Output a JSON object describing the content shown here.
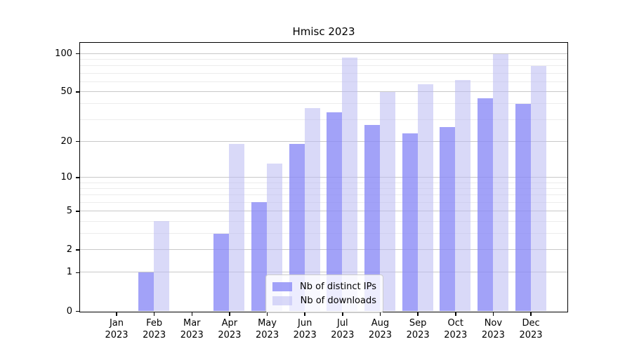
{
  "chart_data": {
    "type": "bar",
    "title": "Hmisc 2023",
    "year": "2023",
    "categories": [
      "Jan",
      "Feb",
      "Mar",
      "Apr",
      "May",
      "Jun",
      "Jul",
      "Aug",
      "Sep",
      "Oct",
      "Nov",
      "Dec"
    ],
    "series": [
      {
        "name": "Nb of distinct IPs",
        "values": [
          0,
          1,
          0,
          3,
          6,
          19,
          34,
          27,
          23,
          26,
          44,
          40
        ],
        "color": "rgba(136,136,246,0.78)"
      },
      {
        "name": "Nb of downloads",
        "values": [
          0,
          4,
          0,
          19,
          13,
          37,
          93,
          50,
          57,
          62,
          99,
          80
        ],
        "color": "rgba(185,185,243,0.55)"
      }
    ],
    "y_axis": {
      "scale": "log1p",
      "major_ticks": [
        0,
        1,
        2,
        5,
        10,
        20,
        50,
        100
      ],
      "minor_ticks": [
        3,
        4,
        6,
        7,
        8,
        9,
        30,
        40,
        60,
        70,
        80,
        90
      ],
      "ylim": [
        0,
        120
      ]
    },
    "xlabel": "",
    "ylabel": "",
    "grid": "on",
    "legend_position": "inside-bottom-center",
    "colors": {
      "major_grid": "#c8c8c8",
      "minor_grid": "#ececec",
      "axis": "#000000",
      "text": "#000000",
      "legend_border": "#cccccc",
      "legend_background": "rgba(255,255,255,0.8)",
      "background": "#ffffff"
    }
  }
}
